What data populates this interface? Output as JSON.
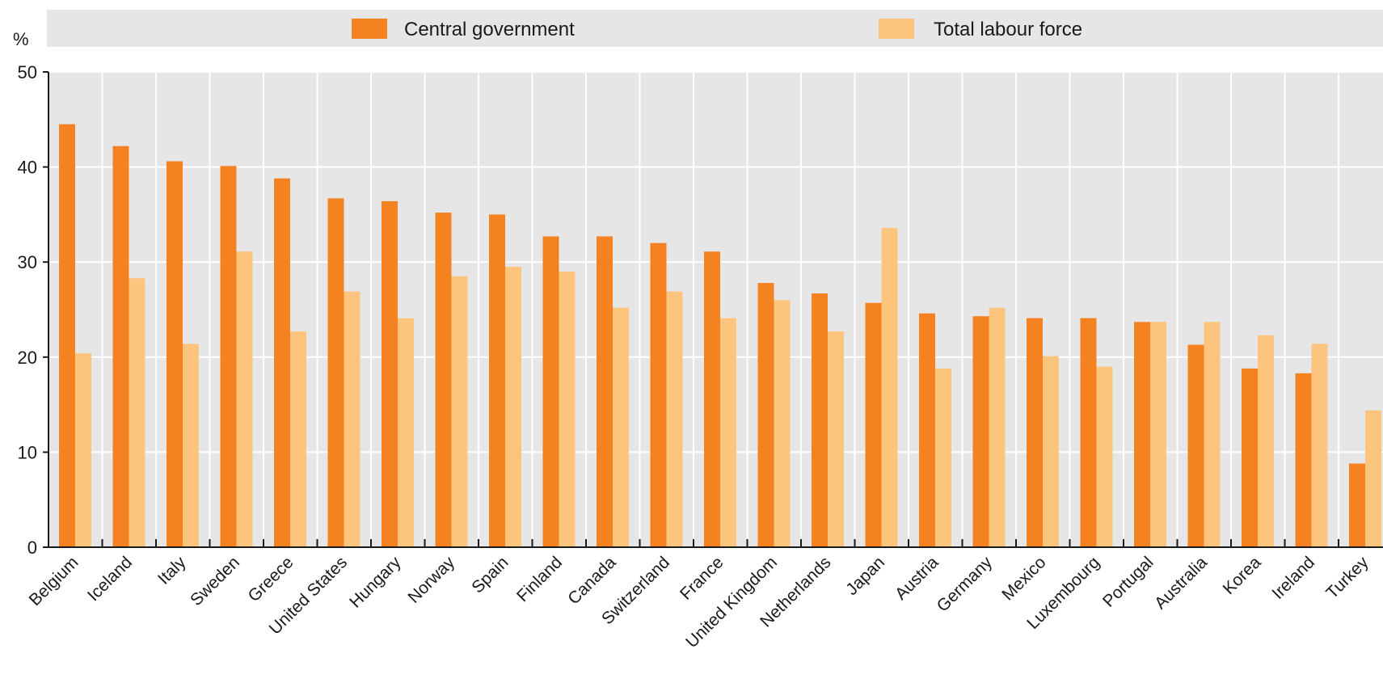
{
  "chart_data": {
    "type": "bar",
    "unit_label": "%",
    "categories": [
      "Belgium",
      "Iceland",
      "Italy",
      "Sweden",
      "Greece",
      "United States",
      "Hungary",
      "Norway",
      "Spain",
      "Finland",
      "Canada",
      "Switzerland",
      "France",
      "United Kingdom",
      "Netherlands",
      "Japan",
      "Austria",
      "Germany",
      "Mexico",
      "Luxembourg",
      "Portugal",
      "Australia",
      "Korea",
      "Ireland",
      "Turkey"
    ],
    "series": [
      {
        "name": "Central government",
        "color": "#F58220",
        "values": [
          44.5,
          42.2,
          40.6,
          40.1,
          38.8,
          36.7,
          36.4,
          35.2,
          35.0,
          32.7,
          32.7,
          32.0,
          31.1,
          27.8,
          26.7,
          25.7,
          24.6,
          24.3,
          24.1,
          24.1,
          23.7,
          21.3,
          18.8,
          18.3,
          8.8
        ]
      },
      {
        "name": "Total labour force",
        "color": "#FDC47E",
        "values": [
          20.4,
          28.3,
          21.4,
          31.1,
          22.7,
          26.9,
          24.1,
          28.5,
          29.5,
          29.0,
          25.2,
          26.9,
          24.1,
          26.0,
          22.7,
          33.6,
          18.8,
          25.2,
          20.1,
          19.0,
          23.7,
          23.7,
          22.3,
          21.4,
          14.4
        ]
      }
    ],
    "yticks": [
      "0",
      "10",
      "20",
      "30",
      "40",
      "50"
    ],
    "ylim": [
      0,
      50
    ],
    "grid": true,
    "legend_position": "top"
  }
}
